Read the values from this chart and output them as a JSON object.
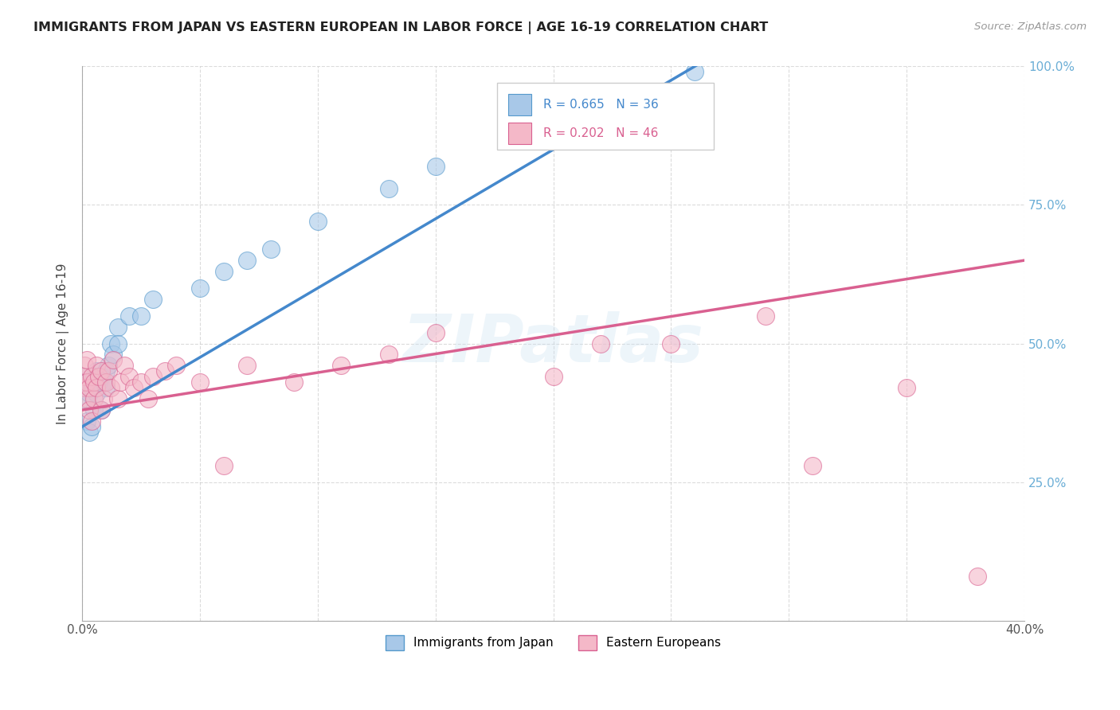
{
  "title": "IMMIGRANTS FROM JAPAN VS EASTERN EUROPEAN IN LABOR FORCE | AGE 16-19 CORRELATION CHART",
  "source": "Source: ZipAtlas.com",
  "ylabel": "In Labor Force | Age 16-19",
  "xlim": [
    0.0,
    0.4
  ],
  "ylim": [
    0.0,
    1.0
  ],
  "legend1_label": "Immigrants from Japan",
  "legend2_label": "Eastern Europeans",
  "R_japan": 0.665,
  "N_japan": 36,
  "R_eastern": 0.202,
  "N_eastern": 46,
  "blue_fill": "#a8c8e8",
  "blue_edge": "#5599cc",
  "pink_fill": "#f4b8c8",
  "pink_edge": "#d96090",
  "blue_line": "#4488cc",
  "pink_line": "#d96090",
  "japan_x": [
    0.001,
    0.001,
    0.001,
    0.002,
    0.002,
    0.003,
    0.003,
    0.004,
    0.004,
    0.005,
    0.005,
    0.006,
    0.006,
    0.007,
    0.008,
    0.008,
    0.009,
    0.01,
    0.01,
    0.011,
    0.012,
    0.013,
    0.015,
    0.015,
    0.02,
    0.025,
    0.03,
    0.05,
    0.06,
    0.07,
    0.08,
    0.1,
    0.13,
    0.15,
    0.2,
    0.26
  ],
  "japan_y": [
    0.42,
    0.44,
    0.4,
    0.43,
    0.36,
    0.34,
    0.41,
    0.35,
    0.42,
    0.38,
    0.44,
    0.41,
    0.45,
    0.43,
    0.38,
    0.44,
    0.43,
    0.45,
    0.42,
    0.46,
    0.5,
    0.48,
    0.53,
    0.5,
    0.55,
    0.55,
    0.58,
    0.6,
    0.63,
    0.65,
    0.67,
    0.72,
    0.78,
    0.82,
    0.88,
    0.99
  ],
  "eastern_x": [
    0.001,
    0.001,
    0.001,
    0.002,
    0.002,
    0.002,
    0.003,
    0.003,
    0.004,
    0.004,
    0.005,
    0.005,
    0.006,
    0.006,
    0.007,
    0.008,
    0.008,
    0.009,
    0.01,
    0.011,
    0.012,
    0.013,
    0.015,
    0.016,
    0.018,
    0.02,
    0.022,
    0.025,
    0.028,
    0.03,
    0.035,
    0.04,
    0.05,
    0.06,
    0.07,
    0.09,
    0.11,
    0.13,
    0.15,
    0.2,
    0.22,
    0.25,
    0.29,
    0.31,
    0.35,
    0.38
  ],
  "eastern_y": [
    0.42,
    0.44,
    0.46,
    0.4,
    0.43,
    0.47,
    0.38,
    0.42,
    0.36,
    0.44,
    0.4,
    0.43,
    0.46,
    0.42,
    0.44,
    0.38,
    0.45,
    0.4,
    0.43,
    0.45,
    0.42,
    0.47,
    0.4,
    0.43,
    0.46,
    0.44,
    0.42,
    0.43,
    0.4,
    0.44,
    0.45,
    0.46,
    0.43,
    0.28,
    0.46,
    0.43,
    0.46,
    0.48,
    0.52,
    0.44,
    0.5,
    0.5,
    0.55,
    0.28,
    0.42,
    0.08
  ],
  "watermark_text": "ZIPatlas",
  "background_color": "#ffffff",
  "grid_color": "#cccccc",
  "ytick_color": "#6baed6",
  "axis_color": "#aaaaaa"
}
